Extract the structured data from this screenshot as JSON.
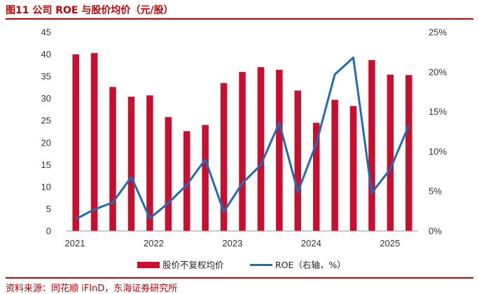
{
  "header": {
    "title": "图11  公司 ROE 与股价均价（元/股）"
  },
  "footer": {
    "source": "资料来源：同花顺 iFInD，东海证券研究所"
  },
  "chart_data": {
    "type": "bar",
    "title": "公司 ROE 与股价均价（元/股）",
    "x_tick_labels": [
      "2021",
      "2022",
      "2023",
      "2024",
      "2025"
    ],
    "y_left": {
      "ylim": [
        0,
        45
      ],
      "ticks": [
        "0",
        "5",
        "10",
        "15",
        "20",
        "25",
        "30",
        "35",
        "40",
        "45"
      ]
    },
    "y_right": {
      "ylim": [
        0,
        0.25
      ],
      "ticks": [
        "0%",
        "5%",
        "10%",
        "15%",
        "20%",
        "25%"
      ]
    },
    "grid": false,
    "legend_position": "bottom",
    "series": [
      {
        "name": "股价不复权均价",
        "type": "bar",
        "axis": "left",
        "color": "#c8102e",
        "values": [
          40.0,
          40.3,
          32.6,
          30.4,
          30.7,
          25.8,
          22.6,
          24.0,
          33.5,
          36.0,
          37.1,
          36.5,
          31.8,
          24.5,
          29.7,
          28.3,
          38.7,
          35.4,
          35.3
        ]
      },
      {
        "name": "ROE（右轴，%）",
        "type": "line",
        "axis": "right",
        "color": "#1f6bb5",
        "values": [
          0.015,
          0.027,
          0.036,
          0.068,
          0.016,
          0.035,
          0.058,
          0.09,
          0.024,
          0.06,
          0.083,
          0.136,
          0.049,
          0.11,
          0.197,
          0.218,
          0.048,
          0.078,
          0.133
        ]
      }
    ]
  }
}
